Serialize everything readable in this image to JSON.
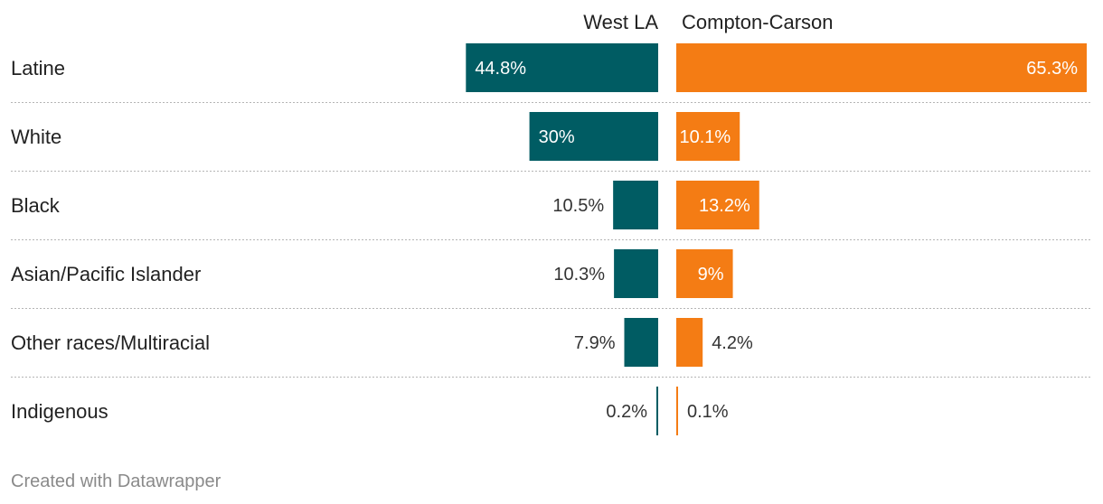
{
  "chart_data": {
    "type": "bar",
    "layout": "mirrored-split-bar",
    "categories": [
      "Latine",
      "White",
      "Black",
      "Asian/Pacific Islander",
      "Other races/Multiracial",
      "Indigenous"
    ],
    "series": [
      {
        "name": "West LA",
        "values": [
          44.8,
          30,
          10.5,
          10.3,
          7.9,
          0.2
        ],
        "labels": [
          "44.8%",
          "30%",
          "10.5%",
          "10.3%",
          "7.9%",
          "0.2%"
        ],
        "color": "#005c63"
      },
      {
        "name": "Compton-Carson",
        "values": [
          65.3,
          10.1,
          13.2,
          9,
          4.2,
          0.1
        ],
        "labels": [
          "65.3%",
          "10.1%",
          "13.2%",
          "9%",
          "4.2%",
          "0.1%"
        ],
        "color": "#f47c14"
      }
    ],
    "xlim": [
      0,
      65.3
    ],
    "grid": "dotted row separators",
    "value_unit": "%"
  },
  "footer": {
    "credit": "Created with Datawrapper"
  }
}
